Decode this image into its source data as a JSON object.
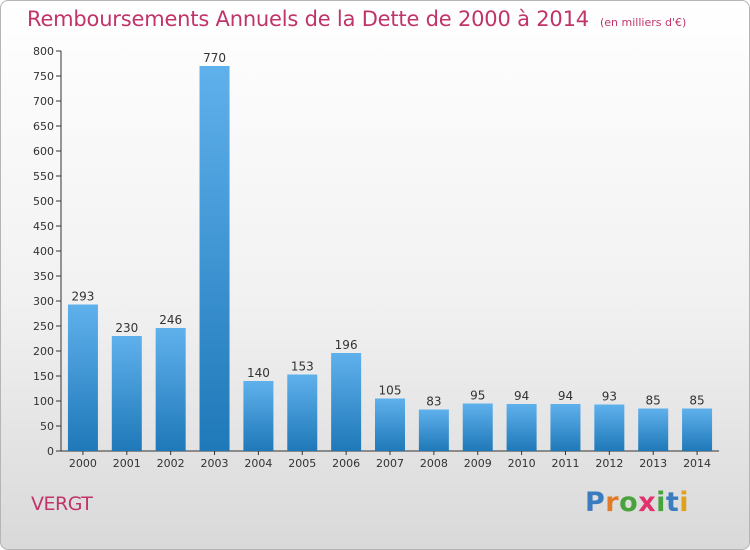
{
  "title": "Remboursements Annuels de la Dette de 2000 à 2014",
  "subtitle": "(en milliers d'€)",
  "commune": "VERGT",
  "logo": {
    "letters": [
      "P",
      "r",
      "o",
      "x",
      "i",
      "t",
      "i"
    ],
    "colors": [
      "#3b7bbf",
      "#e07b2a",
      "#49a33c",
      "#e0326e",
      "#49a33c",
      "#3b7bbf",
      "#e0a11c"
    ]
  },
  "colors": {
    "accent": "#c0346a",
    "bar_light": "#5fb1ec",
    "bar_dark": "#1f78b8",
    "axis": "#333333"
  },
  "chart_data": {
    "type": "bar",
    "title": "Remboursements Annuels de la Dette de 2000 à 2014",
    "subtitle": "(en milliers d'€)",
    "categories": [
      "2000",
      "2001",
      "2002",
      "2003",
      "2004",
      "2005",
      "2006",
      "2007",
      "2008",
      "2009",
      "2010",
      "2011",
      "2012",
      "2013",
      "2014"
    ],
    "values": [
      293,
      230,
      246,
      770,
      140,
      153,
      196,
      105,
      83,
      95,
      94,
      94,
      93,
      85,
      85
    ],
    "ylim": [
      0,
      800
    ],
    "yticks": [
      0,
      50,
      100,
      150,
      200,
      250,
      300,
      350,
      400,
      450,
      500,
      550,
      600,
      650,
      700,
      750,
      800
    ],
    "xlabel": "",
    "ylabel": "",
    "grid": false,
    "legend": "none",
    "data_labels": true
  }
}
